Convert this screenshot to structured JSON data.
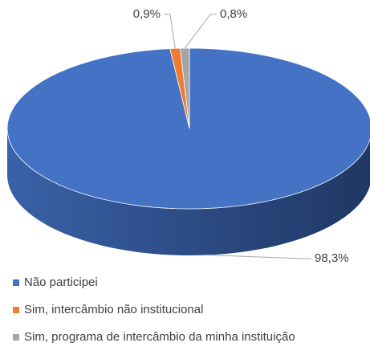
{
  "chart_data": {
    "type": "pie",
    "categories": [
      "Não participei",
      "Sim, intercâmbio não institucional",
      "Sim, programa de intercâmbio da minha instituição"
    ],
    "values": [
      98.3,
      0.9,
      0.8
    ],
    "value_labels": [
      "98,3%",
      "0,9%",
      "0,8%"
    ],
    "colors": [
      "#4472c4",
      "#ed7d31",
      "#a5a5a5"
    ],
    "legend": "bottom"
  }
}
